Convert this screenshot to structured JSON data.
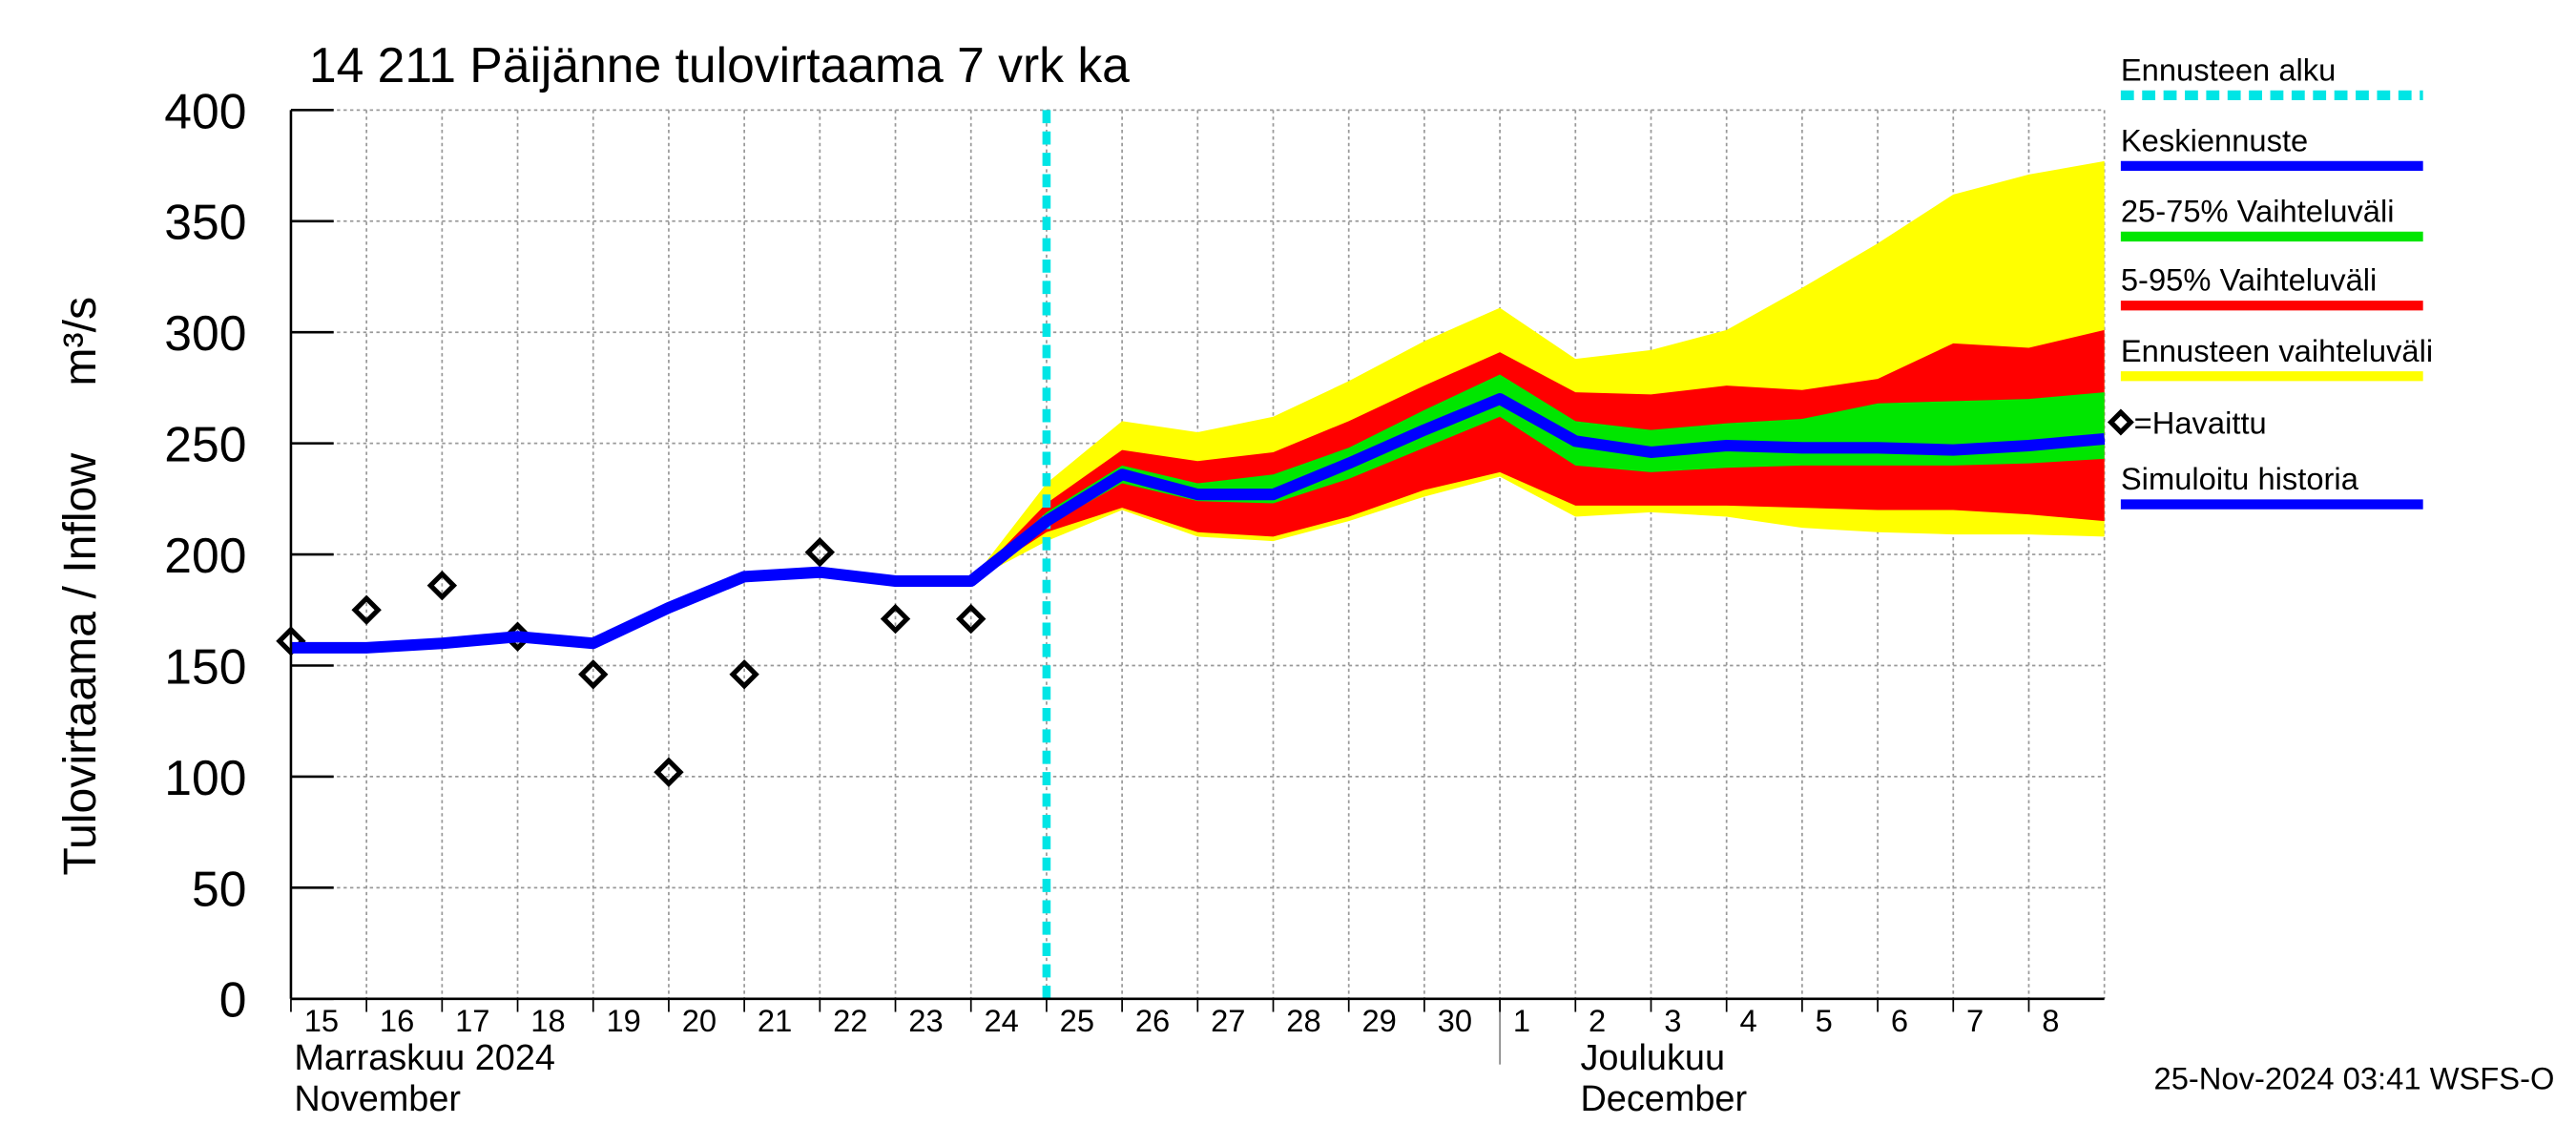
{
  "chart_data": {
    "type": "forecast-band",
    "title": "14 211 Päijänne tulovirtaama 7 vrk ka",
    "y_label": "Tulovirtaama / Inflow",
    "y_unit": "m³/s",
    "month_labels": [
      "Marraskuu 2024",
      "November",
      "Joulukuu",
      "December"
    ],
    "timestamp": "25-Nov-2024 03:41 WSFS-O",
    "xlim": [
      "2024-11-15",
      "2024-12-09"
    ],
    "xticks": [
      {
        "value": "2024-11-15",
        "label": "15"
      },
      {
        "value": "2024-11-16",
        "label": "16"
      },
      {
        "value": "2024-11-17",
        "label": "17"
      },
      {
        "value": "2024-11-18",
        "label": "18"
      },
      {
        "value": "2024-11-19",
        "label": "19"
      },
      {
        "value": "2024-11-20",
        "label": "20"
      },
      {
        "value": "2024-11-21",
        "label": "21"
      },
      {
        "value": "2024-11-22",
        "label": "22"
      },
      {
        "value": "2024-11-23",
        "label": "23"
      },
      {
        "value": "2024-11-24",
        "label": "24"
      },
      {
        "value": "2024-11-25",
        "label": "25"
      },
      {
        "value": "2024-11-26",
        "label": "26"
      },
      {
        "value": "2024-11-27",
        "label": "27"
      },
      {
        "value": "2024-11-28",
        "label": "28"
      },
      {
        "value": "2024-11-29",
        "label": "29"
      },
      {
        "value": "2024-11-30",
        "label": "30"
      },
      {
        "value": "2024-12-01",
        "label": "1"
      },
      {
        "value": "2024-12-02",
        "label": "2"
      },
      {
        "value": "2024-12-03",
        "label": "3"
      },
      {
        "value": "2024-12-04",
        "label": "4"
      },
      {
        "value": "2024-12-05",
        "label": "5"
      },
      {
        "value": "2024-12-06",
        "label": "6"
      },
      {
        "value": "2024-12-07",
        "label": "7"
      },
      {
        "value": "2024-12-08",
        "label": "8"
      }
    ],
    "ylim": [
      0,
      400
    ],
    "yticks": [
      0,
      50,
      100,
      150,
      200,
      250,
      300,
      350,
      400
    ],
    "grid": true,
    "forecast_start": {
      "name": "Ennusteen alku",
      "x": "2024-11-25",
      "color": "#00e5e5"
    },
    "bands": [
      {
        "name": "Ennusteen vaihteluväli",
        "color": "#ffff00",
        "x": [
          "2024-11-24",
          "2024-11-25",
          "2024-11-26",
          "2024-11-27",
          "2024-11-28",
          "2024-11-29",
          "2024-11-30",
          "2024-12-01",
          "2024-12-02",
          "2024-12-03",
          "2024-12-04",
          "2024-12-05",
          "2024-12-06",
          "2024-12-07",
          "2024-12-08",
          "2024-12-09"
        ],
        "upper": [
          188,
          232,
          260,
          255,
          262,
          278,
          296,
          311,
          288,
          292,
          301,
          320,
          340,
          362,
          371,
          377
        ],
        "lower": [
          188,
          206,
          220,
          208,
          206,
          215,
          226,
          235,
          217,
          219,
          217,
          212,
          210,
          209,
          209,
          208
        ]
      },
      {
        "name": "5-95% Vaihteluväli",
        "color": "#ff0000",
        "x": [
          "2024-11-24",
          "2024-11-25",
          "2024-11-26",
          "2024-11-27",
          "2024-11-28",
          "2024-11-29",
          "2024-11-30",
          "2024-12-01",
          "2024-12-02",
          "2024-12-03",
          "2024-12-04",
          "2024-12-05",
          "2024-12-06",
          "2024-12-07",
          "2024-12-08",
          "2024-12-09"
        ],
        "upper": [
          188,
          223,
          247,
          242,
          246,
          260,
          276,
          291,
          273,
          272,
          276,
          274,
          279,
          295,
          293,
          301
        ],
        "lower": [
          188,
          210,
          221,
          210,
          208,
          217,
          229,
          237,
          222,
          222,
          222,
          221,
          220,
          220,
          218,
          215
        ]
      },
      {
        "name": "25-75% Vaihteluväli",
        "color": "#00e600",
        "x": [
          "2024-11-24",
          "2024-11-25",
          "2024-11-26",
          "2024-11-27",
          "2024-11-28",
          "2024-11-29",
          "2024-11-30",
          "2024-12-01",
          "2024-12-02",
          "2024-12-03",
          "2024-12-04",
          "2024-12-05",
          "2024-12-06",
          "2024-12-07",
          "2024-12-08",
          "2024-12-09"
        ],
        "upper": [
          188,
          219,
          240,
          232,
          236,
          248,
          265,
          281,
          260,
          256,
          259,
          261,
          268,
          269,
          270,
          273
        ],
        "lower": [
          188,
          213,
          232,
          224,
          223,
          234,
          248,
          262,
          240,
          237,
          239,
          240,
          240,
          240,
          241,
          243
        ]
      }
    ],
    "series": [
      {
        "name": "Keskiennuste",
        "color": "#0000ff",
        "kind": "line",
        "x": [
          "2024-11-24",
          "2024-11-25",
          "2024-11-26",
          "2024-11-27",
          "2024-11-28",
          "2024-11-29",
          "2024-11-30",
          "2024-12-01",
          "2024-12-02",
          "2024-12-03",
          "2024-12-04",
          "2024-12-05",
          "2024-12-06",
          "2024-12-07",
          "2024-12-08",
          "2024-12-09"
        ],
        "values": [
          188,
          215,
          236,
          227,
          227,
          241,
          256,
          270,
          251,
          246,
          249,
          248,
          248,
          247,
          249,
          252
        ]
      },
      {
        "name": "=Havaittu",
        "color": "#000000",
        "kind": "marker",
        "x": [
          "2024-11-15",
          "2024-11-16",
          "2024-11-17",
          "2024-11-18",
          "2024-11-19",
          "2024-11-20",
          "2024-11-21",
          "2024-11-22",
          "2024-11-23",
          "2024-11-24"
        ],
        "values": [
          161,
          175,
          186,
          163,
          146,
          102,
          146,
          201,
          171,
          171
        ]
      },
      {
        "name": "Simuloitu historia",
        "color": "#0000ff",
        "kind": "line",
        "x": [
          "2024-11-15",
          "2024-11-16",
          "2024-11-17",
          "2024-11-18",
          "2024-11-19",
          "2024-11-20",
          "2024-11-21",
          "2024-11-22",
          "2024-11-23",
          "2024-11-24",
          "2024-11-25"
        ],
        "values": [
          158,
          158,
          160,
          163,
          160,
          176,
          190,
          192,
          188,
          188,
          215
        ]
      }
    ]
  }
}
